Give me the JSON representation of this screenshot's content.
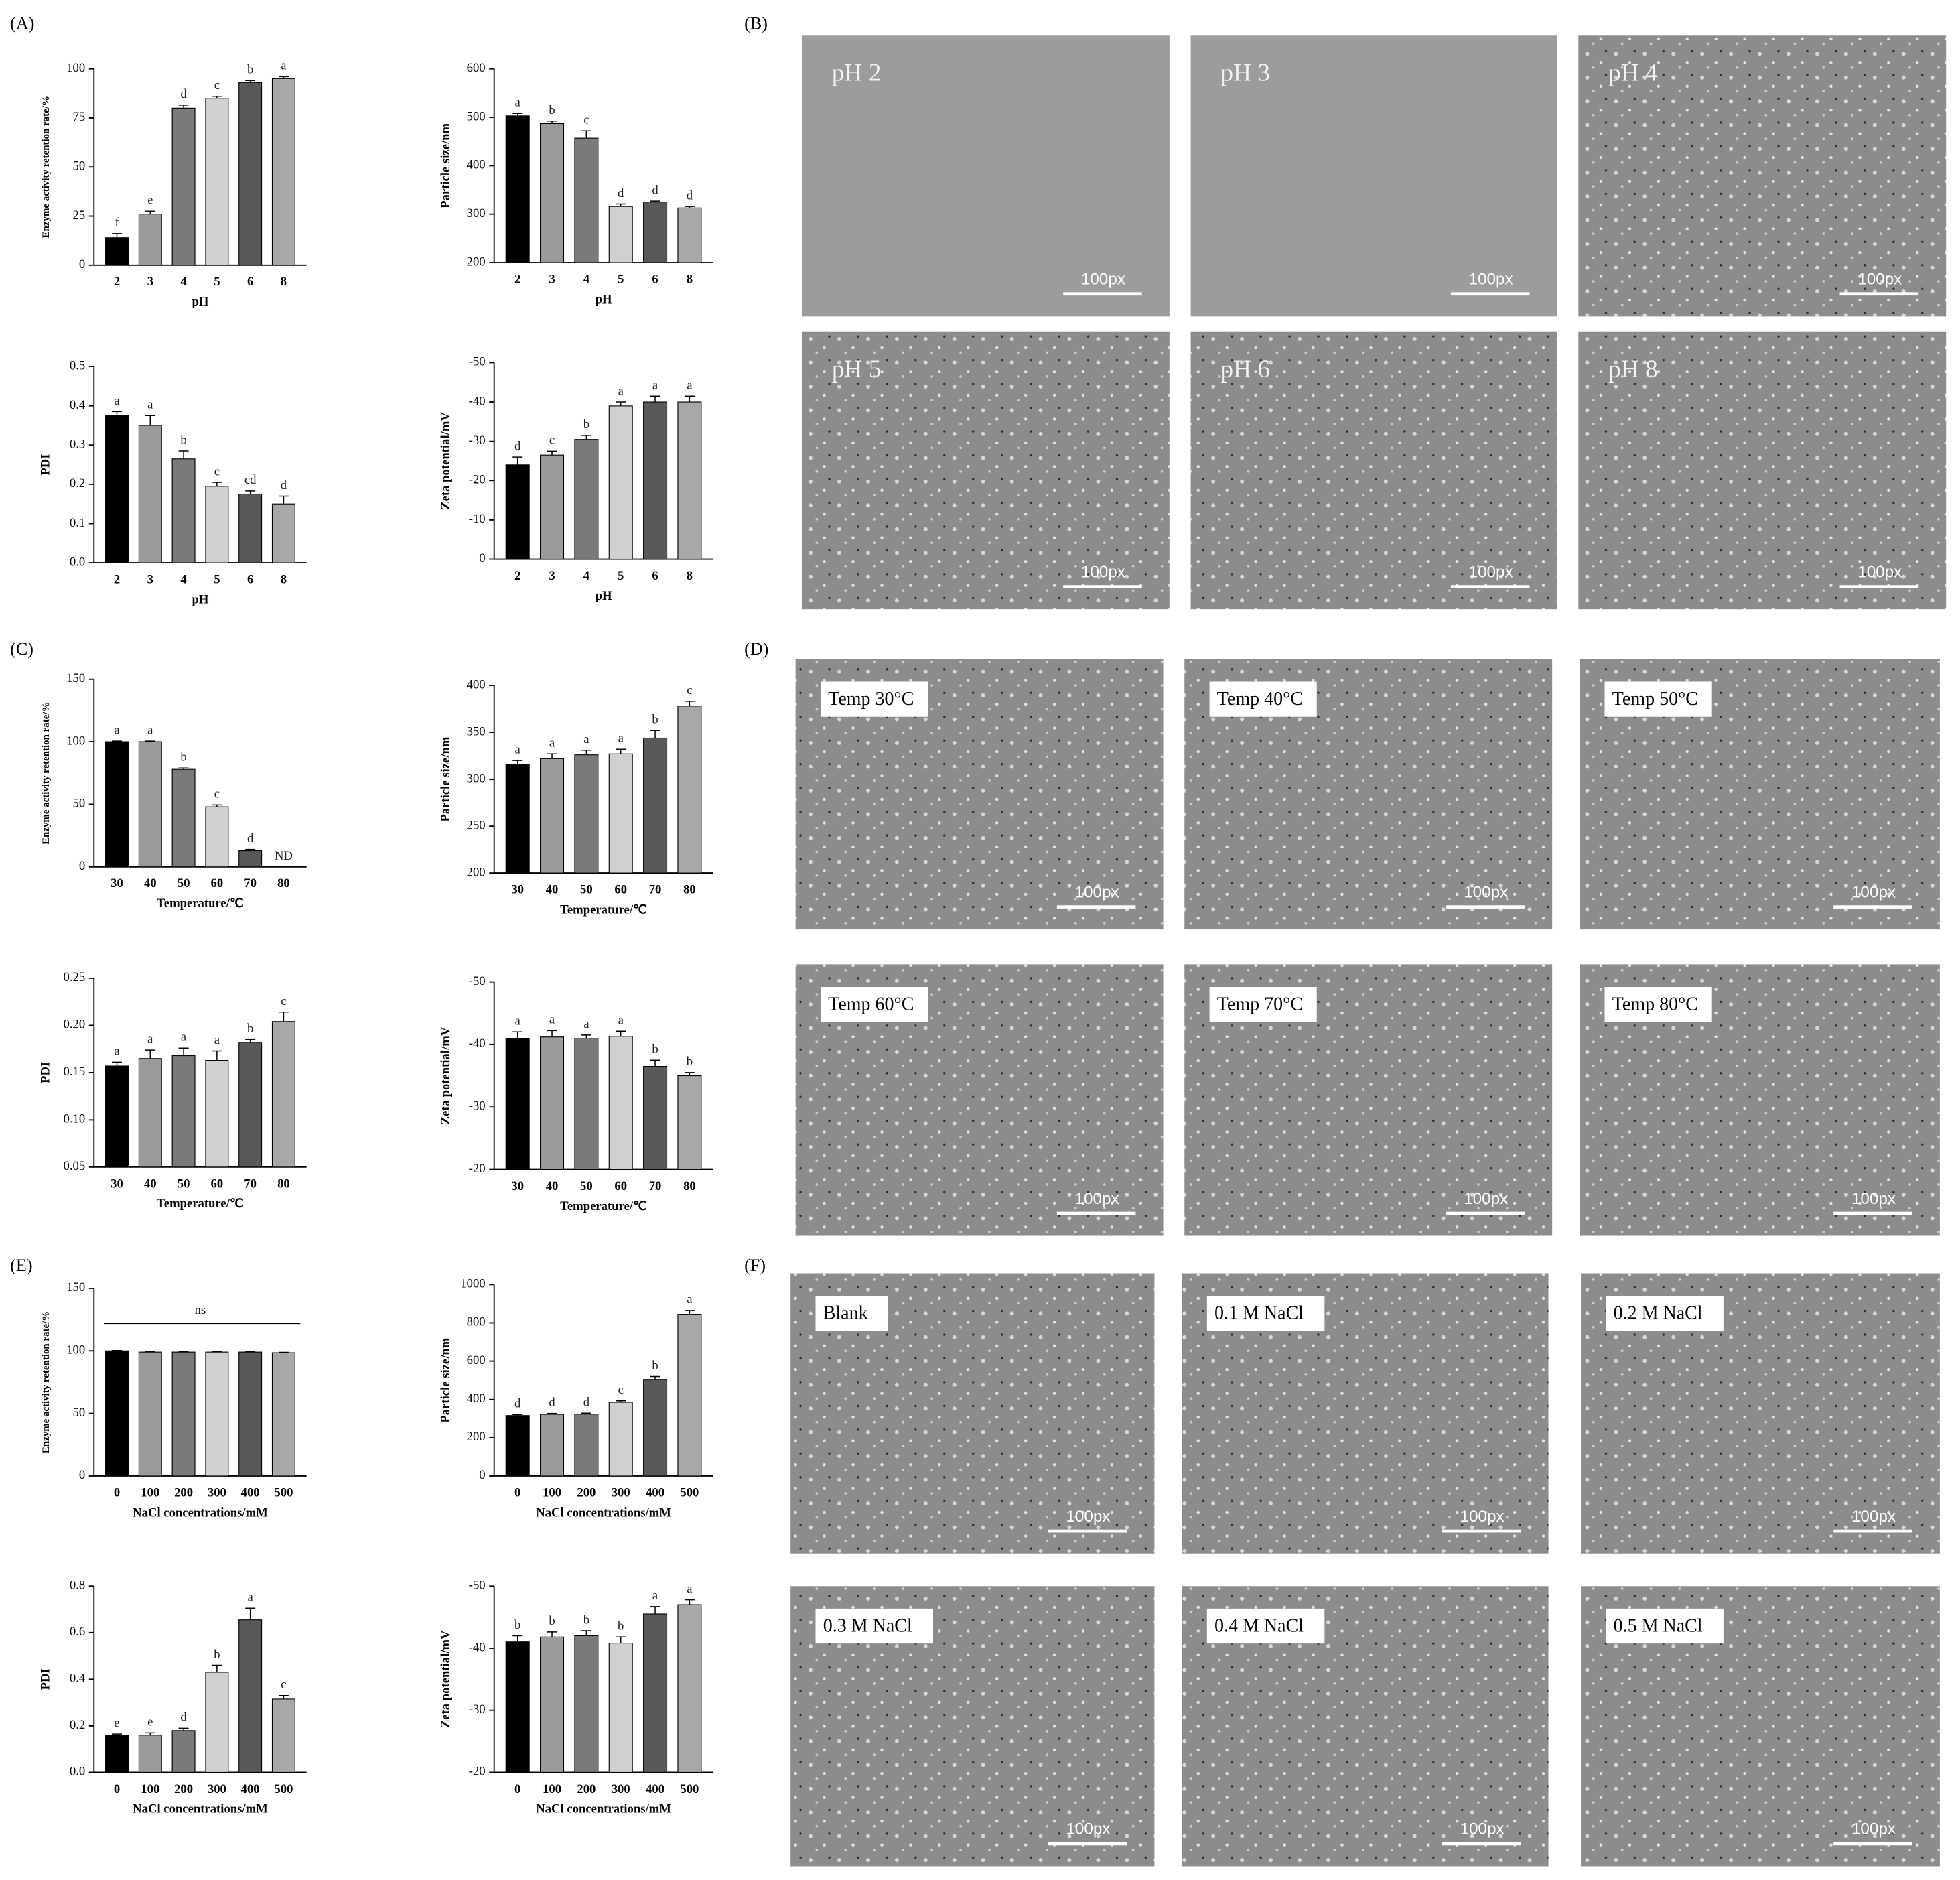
{
  "panel_labels": [
    "(A)",
    "(B)",
    "(C)",
    "(D)",
    "(E)",
    "(F)"
  ],
  "micrographs": [
    {
      "scale": "100px",
      "label_box": false,
      "images": [
        "pH 2",
        "pH 3",
        "pH 4",
        "pH 5",
        "pH 6",
        "pH 8"
      ]
    },
    {
      "scale": "100px",
      "label_box": true,
      "images": [
        "Temp 30°C",
        "Temp 40°C",
        "Temp 50°C",
        "Temp 60°C",
        "Temp 70°C",
        "Temp 80°C"
      ]
    },
    {
      "scale": "100px",
      "label_box": true,
      "images": [
        "Blank",
        "0.1 M NaCl",
        "0.2 M NaCl",
        "0.3 M NaCl",
        "0.4 M NaCl",
        "0.5 M NaCl"
      ]
    }
  ],
  "chart_data": [
    {
      "type": "bar",
      "ylabel": "Enzyme activity retention rate/%",
      "xlabel": "pH",
      "categories": [
        "2",
        "3",
        "4",
        "5",
        "6",
        "8"
      ],
      "values": [
        14,
        26,
        80,
        85,
        93,
        95
      ],
      "errors": [
        2,
        1.5,
        1.5,
        1,
        1,
        1
      ],
      "letters": [
        "f",
        "e",
        "d",
        "c",
        "b",
        "a"
      ],
      "ylim": [
        0,
        100
      ],
      "yticks": [
        0,
        25,
        50,
        75,
        100
      ],
      "colors": [
        "#000000",
        "#9a9a9a",
        "#7a7a7a",
        "#d0d0d0",
        "#585858",
        "#a8a8a8"
      ]
    },
    {
      "type": "bar",
      "ylabel": "Particle size/nm",
      "xlabel": "pH",
      "categories": [
        "2",
        "3",
        "4",
        "5",
        "6",
        "8"
      ],
      "values": [
        503,
        487,
        457,
        316,
        325,
        313
      ],
      "errors": [
        5,
        5,
        15,
        5,
        2,
        3
      ],
      "letters": [
        "a",
        "b",
        "c",
        "d",
        "d",
        "d"
      ],
      "ylim": [
        200,
        600
      ],
      "yticks": [
        200,
        300,
        400,
        500,
        600
      ],
      "colors": [
        "#000000",
        "#9a9a9a",
        "#7a7a7a",
        "#d0d0d0",
        "#585858",
        "#a8a8a8"
      ]
    },
    {
      "type": "bar",
      "ylabel": "PDI",
      "xlabel": "pH",
      "categories": [
        "2",
        "3",
        "4",
        "5",
        "6",
        "8"
      ],
      "values": [
        0.375,
        0.35,
        0.265,
        0.195,
        0.175,
        0.15
      ],
      "errors": [
        0.01,
        0.025,
        0.02,
        0.01,
        0.008,
        0.02
      ],
      "letters": [
        "a",
        "a",
        "b",
        "c",
        "cd",
        "d"
      ],
      "ylim": [
        0,
        0.5
      ],
      "yticks": [
        {
          "value": 0,
          "label": "0.0"
        },
        0.1,
        0.2,
        0.3,
        0.4,
        0.5
      ],
      "colors": [
        "#000000",
        "#9a9a9a",
        "#7a7a7a",
        "#d0d0d0",
        "#585858",
        "#a8a8a8"
      ]
    },
    {
      "type": "bar",
      "ylabel": "Zeta potential/mV",
      "xlabel": "pH",
      "categories": [
        "2",
        "3",
        "4",
        "5",
        "6",
        "8"
      ],
      "values": [
        -24,
        -26.5,
        -30.5,
        -39,
        -40,
        -40
      ],
      "errors": [
        2,
        1,
        1,
        1,
        1.5,
        1.5
      ],
      "letters": [
        "d",
        "c",
        "b",
        "a",
        "a",
        "a"
      ],
      "ylim": [
        0,
        -50
      ],
      "yticks": [
        0,
        -10,
        -20,
        -30,
        -40,
        -50
      ],
      "colors": [
        "#000000",
        "#9a9a9a",
        "#7a7a7a",
        "#d0d0d0",
        "#585858",
        "#a8a8a8"
      ]
    },
    {
      "type": "bar",
      "ylabel": "Enzyme activity retention rate/%",
      "xlabel": "Temperature/℃",
      "categories": [
        "30",
        "40",
        "50",
        "60",
        "70",
        "80"
      ],
      "values": [
        100,
        100,
        78,
        48,
        13,
        null
      ],
      "errors": [
        0.5,
        0.5,
        1,
        1.5,
        1,
        null
      ],
      "letters": [
        "a",
        "a",
        "b",
        "c",
        "d",
        "ND"
      ],
      "ylim": [
        0,
        150
      ],
      "yticks": [
        0,
        50,
        100,
        150
      ],
      "colors": [
        "#000000",
        "#9a9a9a",
        "#7a7a7a",
        "#d0d0d0",
        "#585858",
        "#a8a8a8"
      ]
    },
    {
      "type": "bar",
      "ylabel": "Particle size/nm",
      "xlabel": "Temperature/℃",
      "categories": [
        "30",
        "40",
        "50",
        "60",
        "70",
        "80"
      ],
      "values": [
        316,
        322,
        326,
        327,
        344,
        378
      ],
      "errors": [
        4,
        5,
        5,
        5,
        8,
        5
      ],
      "letters": [
        "a",
        "a",
        "a",
        "a",
        "b",
        "c"
      ],
      "ylim": [
        200,
        400
      ],
      "yticks": [
        200,
        250,
        300,
        350,
        400
      ],
      "colors": [
        "#000000",
        "#9a9a9a",
        "#7a7a7a",
        "#d0d0d0",
        "#585858",
        "#a8a8a8"
      ]
    },
    {
      "type": "bar",
      "ylabel": "PDI",
      "xlabel": "Temperature/℃",
      "categories": [
        "30",
        "40",
        "50",
        "60",
        "70",
        "80"
      ],
      "values": [
        0.157,
        0.165,
        0.168,
        0.163,
        0.182,
        0.204
      ],
      "errors": [
        0.004,
        0.009,
        0.008,
        0.01,
        0.003,
        0.01
      ],
      "letters": [
        "a",
        "a",
        "a",
        "a",
        "b",
        "c"
      ],
      "ylim": [
        0.05,
        0.25
      ],
      "yticks": [
        0.05,
        {
          "value": 0.1,
          "label": "0.10"
        },
        0.15,
        {
          "value": 0.2,
          "label": "0.20"
        },
        0.25
      ],
      "colors": [
        "#000000",
        "#9a9a9a",
        "#7a7a7a",
        "#d0d0d0",
        "#585858",
        "#a8a8a8"
      ]
    },
    {
      "type": "bar",
      "ylabel": "Zeta potential/mV",
      "xlabel": "Temperature/℃",
      "categories": [
        "30",
        "40",
        "50",
        "60",
        "70",
        "80"
      ],
      "values": [
        -41,
        -41.2,
        -41,
        -41.3,
        -36.5,
        -35
      ],
      "errors": [
        1,
        1,
        0.5,
        0.8,
        1,
        0.5
      ],
      "letters": [
        "a",
        "a",
        "a",
        "a",
        "b",
        "b"
      ],
      "ylim": [
        -20,
        -50
      ],
      "yticks": [
        -20,
        -30,
        -40,
        -50
      ],
      "colors": [
        "#000000",
        "#9a9a9a",
        "#7a7a7a",
        "#d0d0d0",
        "#585858",
        "#a8a8a8"
      ]
    },
    {
      "type": "bar",
      "ylabel": "Enzyme activity retention rate/%",
      "xlabel": "NaCl concentrations/mM",
      "categories": [
        "0",
        "100",
        "200",
        "300",
        "400",
        "500"
      ],
      "values": [
        100,
        99,
        99,
        99,
        99,
        98.5
      ],
      "errors": [
        0.3,
        0.3,
        0.3,
        0.5,
        0.5,
        0.3
      ],
      "note": "ns",
      "ylim": [
        0,
        150
      ],
      "yticks": [
        0,
        50,
        100,
        150
      ],
      "colors": [
        "#000000",
        "#9a9a9a",
        "#7a7a7a",
        "#d0d0d0",
        "#585858",
        "#a8a8a8"
      ]
    },
    {
      "type": "bar",
      "ylabel": "Particle size/nm",
      "xlabel": "NaCl concentrations/mM",
      "categories": [
        "0",
        "100",
        "200",
        "300",
        "400",
        "500"
      ],
      "values": [
        316,
        322,
        323,
        385,
        505,
        845
      ],
      "errors": [
        5,
        5,
        5,
        8,
        15,
        20
      ],
      "letters": [
        "d",
        "d",
        "d",
        "c",
        "b",
        "a"
      ],
      "ylim": [
        0,
        1000
      ],
      "yticks": [
        0,
        200,
        400,
        600,
        800,
        1000
      ],
      "colors": [
        "#000000",
        "#9a9a9a",
        "#7a7a7a",
        "#d0d0d0",
        "#585858",
        "#a8a8a8"
      ]
    },
    {
      "type": "bar",
      "ylabel": "PDI",
      "xlabel": "NaCl concentrations/mM",
      "categories": [
        "0",
        "100",
        "200",
        "300",
        "400",
        "500"
      ],
      "values": [
        0.16,
        0.16,
        0.18,
        0.43,
        0.655,
        0.315
      ],
      "errors": [
        0.005,
        0.01,
        0.01,
        0.03,
        0.05,
        0.015
      ],
      "letters": [
        "e",
        "e",
        "d",
        "b",
        "a",
        "c"
      ],
      "ylim": [
        0,
        0.8
      ],
      "yticks": [
        {
          "value": 0,
          "label": "0.0"
        },
        0.2,
        0.4,
        0.6,
        0.8
      ],
      "colors": [
        "#000000",
        "#9a9a9a",
        "#7a7a7a",
        "#d0d0d0",
        "#585858",
        "#a8a8a8"
      ]
    },
    {
      "type": "bar",
      "ylabel": "Zeta potential/mV",
      "xlabel": "NaCl concentrations/mM",
      "categories": [
        "0",
        "100",
        "200",
        "300",
        "400",
        "500"
      ],
      "values": [
        -41,
        -41.8,
        -42,
        -40.8,
        -45.5,
        -47
      ],
      "errors": [
        1,
        0.8,
        0.8,
        1,
        1.2,
        0.8
      ],
      "letters": [
        "b",
        "b",
        "b",
        "b",
        "a",
        "a"
      ],
      "ylim": [
        -20,
        -50
      ],
      "yticks": [
        -20,
        -30,
        -40,
        -50
      ],
      "colors": [
        "#000000",
        "#9a9a9a",
        "#7a7a7a",
        "#d0d0d0",
        "#585858",
        "#a8a8a8"
      ]
    }
  ]
}
